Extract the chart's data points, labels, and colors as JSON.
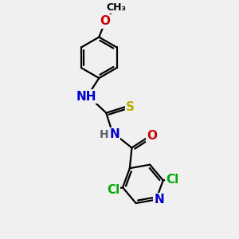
{
  "bg_color": "#f0f0f0",
  "atom_colors": {
    "C": "#000000",
    "N": "#0000cc",
    "O": "#cc0000",
    "S": "#bbaa00",
    "Cl": "#00aa00",
    "H": "#556666"
  },
  "bond_color": "#000000",
  "bond_width": 1.6,
  "font_size_atoms": 11,
  "font_size_label": 10,
  "xlim": [
    0.0,
    10.0
  ],
  "ylim": [
    0.0,
    11.5
  ]
}
